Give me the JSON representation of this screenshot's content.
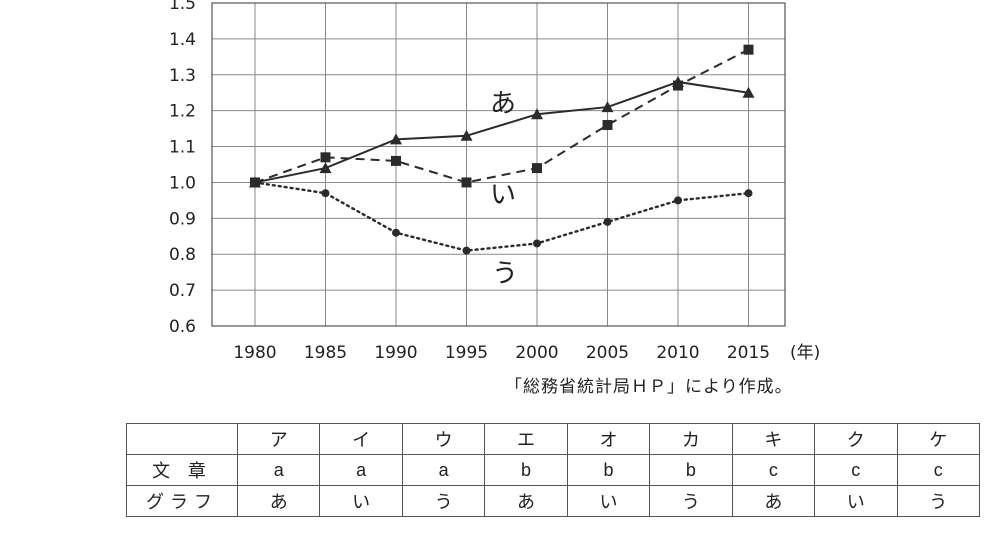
{
  "chart_data": {
    "type": "line",
    "x": [
      1980,
      1985,
      1990,
      1995,
      2000,
      2005,
      2010,
      2015
    ],
    "x_unit": "(年)",
    "ylim": [
      0.6,
      1.5
    ],
    "yticks": [
      "0.6",
      "0.7",
      "0.8",
      "0.9",
      "1.0",
      "1.1",
      "1.2",
      "1.3",
      "1.4",
      "1.5"
    ],
    "grid": true,
    "series": [
      {
        "name": "あ",
        "marker": "triangle",
        "line_style": "solid",
        "values": [
          1.0,
          1.04,
          1.12,
          1.13,
          1.19,
          1.21,
          1.28,
          1.25
        ]
      },
      {
        "name": "い",
        "marker": "square",
        "line_style": "dashed",
        "values": [
          1.0,
          1.07,
          1.06,
          1.0,
          1.04,
          1.16,
          1.27,
          1.37
        ]
      },
      {
        "name": "う",
        "marker": "circle",
        "line_style": "dotted",
        "values": [
          1.0,
          0.97,
          0.86,
          0.81,
          0.83,
          0.89,
          0.95,
          0.97
        ]
      }
    ]
  },
  "source_note": "「総務省統計局ＨＰ」により作成。",
  "table": {
    "headers": [
      "ア",
      "イ",
      "ウ",
      "エ",
      "オ",
      "カ",
      "キ",
      "ク",
      "ケ"
    ],
    "rows": [
      {
        "label": "文 章",
        "cells": [
          "a",
          "a",
          "a",
          "b",
          "b",
          "b",
          "c",
          "c",
          "c"
        ]
      },
      {
        "label": "グラフ",
        "cells": [
          "あ",
          "い",
          "う",
          "あ",
          "い",
          "う",
          "あ",
          "い",
          "う"
        ]
      }
    ]
  }
}
